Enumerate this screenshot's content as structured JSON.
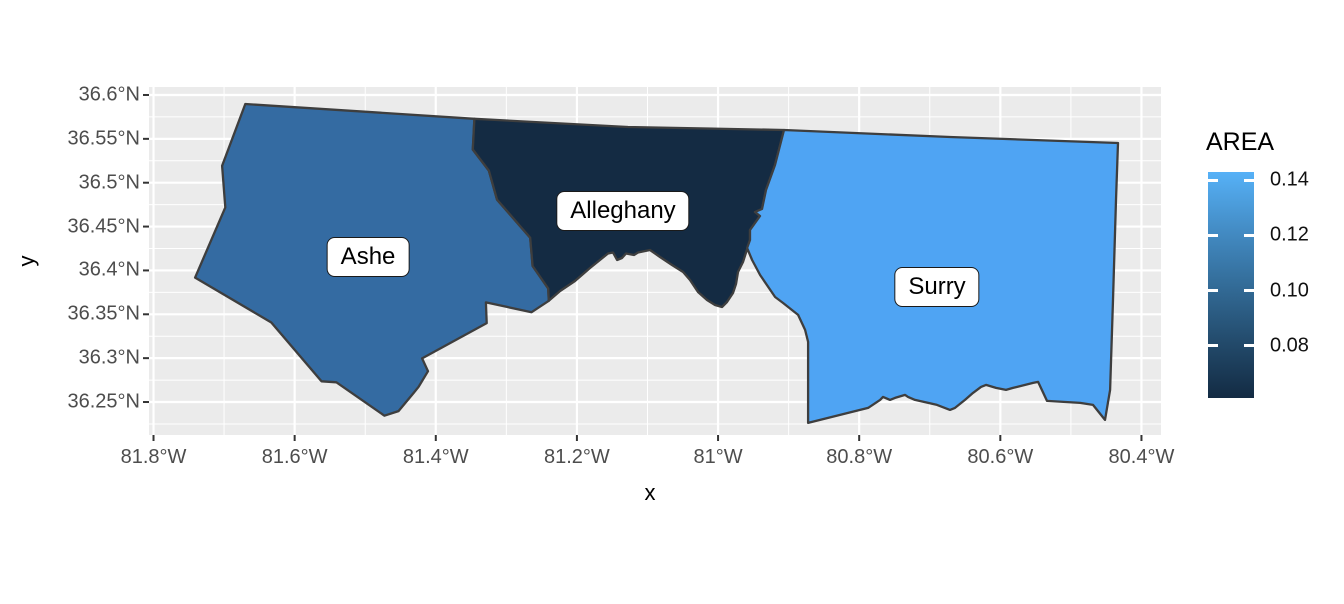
{
  "chart_data": {
    "type": "map",
    "title": "",
    "x_axis": {
      "title": "x",
      "ticks": [
        {
          "v": -81.8,
          "label": "81.8°W"
        },
        {
          "v": -81.6,
          "label": "81.6°W"
        },
        {
          "v": -81.4,
          "label": "81.4°W"
        },
        {
          "v": -81.2,
          "label": "81.2°W"
        },
        {
          "v": -81.0,
          "label": "81°W"
        },
        {
          "v": -80.8,
          "label": "80.8°W"
        },
        {
          "v": -80.6,
          "label": "80.6°W"
        },
        {
          "v": -80.4,
          "label": "80.4°W"
        }
      ],
      "minor": [
        -81.7,
        -81.5,
        -81.3,
        -81.1,
        -80.9,
        -80.7,
        -80.5
      ]
    },
    "y_axis": {
      "title": "y",
      "ticks": [
        {
          "v": 36.6,
          "label": "36.6°N"
        },
        {
          "v": 36.55,
          "label": "36.55°N"
        },
        {
          "v": 36.5,
          "label": "36.5°N"
        },
        {
          "v": 36.45,
          "label": "36.45°N"
        },
        {
          "v": 36.4,
          "label": "36.4°N"
        },
        {
          "v": 36.35,
          "label": "36.35°N"
        },
        {
          "v": 36.3,
          "label": "36.3°N"
        },
        {
          "v": 36.25,
          "label": "36.25°N"
        }
      ],
      "minor": [
        36.225,
        36.275,
        36.325,
        36.375,
        36.425,
        36.475,
        36.525,
        36.575
      ]
    },
    "xlim": [
      -81.8064,
      -80.3723
    ],
    "ylim": [
      36.2124,
      36.6091
    ],
    "grid": "on",
    "panel_bg": "#EBEBEB",
    "grid_color": "#FFFFFF",
    "outline_color": "#3E3E3E",
    "axis_text_color": "#4D4D4D",
    "legend": {
      "title": "AREA",
      "position": "right",
      "range_hi": 0.143,
      "range_lo": 0.061,
      "ticks": [
        {
          "v": 0.14,
          "label": "0.14"
        },
        {
          "v": 0.12,
          "label": "0.12"
        },
        {
          "v": 0.1,
          "label": "0.10"
        },
        {
          "v": 0.08,
          "label": "0.08"
        }
      ],
      "gradient_top_to_bottom": [
        "#56B1F7",
        "#448DC6",
        "#336C98",
        "#234B6C",
        "#132B43"
      ]
    },
    "counties": [
      {
        "name": "Ashe",
        "area": 0.114,
        "fill": "#346BA2",
        "label_pos": [
          -81.496,
          36.415
        ],
        "ring": [
          [
            -81.4728,
            36.2344
          ],
          [
            -81.5408,
            36.2725
          ],
          [
            -81.562,
            36.2736
          ],
          [
            -81.6331,
            36.3407
          ],
          [
            -81.7411,
            36.3918
          ],
          [
            -81.6983,
            36.4718
          ],
          [
            -81.7028,
            36.5193
          ],
          [
            -81.67,
            36.5897
          ],
          [
            -81.3453,
            36.5729
          ],
          [
            -81.3475,
            36.5379
          ],
          [
            -81.3248,
            36.5137
          ],
          [
            -81.3133,
            36.4807
          ],
          [
            -81.2662,
            36.4372
          ],
          [
            -81.2628,
            36.405
          ],
          [
            -81.2407,
            36.3794
          ],
          [
            -81.2399,
            36.3654
          ],
          [
            -81.2642,
            36.3524
          ],
          [
            -81.329,
            36.3635
          ],
          [
            -81.3278,
            36.34
          ],
          [
            -81.4194,
            36.2997
          ],
          [
            -81.4111,
            36.2851
          ],
          [
            -81.4243,
            36.2673
          ],
          [
            -81.431,
            36.2607
          ],
          [
            -81.4529,
            36.2396
          ],
          [
            -81.4728,
            36.2344
          ]
        ]
      },
      {
        "name": "Alleghany",
        "area": 0.061,
        "fill": "#142B43",
        "label_pos": [
          -81.1347,
          36.4678
        ],
        "ring": [
          [
            -81.2399,
            36.3654
          ],
          [
            -81.2407,
            36.3794
          ],
          [
            -81.2628,
            36.405
          ],
          [
            -81.2662,
            36.4372
          ],
          [
            -81.3133,
            36.4807
          ],
          [
            -81.3248,
            36.5137
          ],
          [
            -81.3475,
            36.5379
          ],
          [
            -81.3453,
            36.5729
          ],
          [
            -81.1276,
            36.5635
          ],
          [
            -80.9065,
            36.5601
          ],
          [
            -80.9193,
            36.5202
          ],
          [
            -80.932,
            36.4917
          ],
          [
            -80.9377,
            36.47
          ],
          [
            -80.9476,
            36.4666
          ],
          [
            -80.9405,
            36.462
          ],
          [
            -80.9547,
            36.4461
          ],
          [
            -80.9547,
            36.4347
          ],
          [
            -80.9646,
            36.4096
          ],
          [
            -80.9717,
            36.3982
          ],
          [
            -80.9745,
            36.3845
          ],
          [
            -80.9788,
            36.3743
          ],
          [
            -80.9873,
            36.364
          ],
          [
            -80.9944,
            36.3583
          ],
          [
            -81.0043,
            36.3606
          ],
          [
            -81.0156,
            36.3663
          ],
          [
            -81.0284,
            36.3754
          ],
          [
            -81.0397,
            36.3891
          ],
          [
            -81.0496,
            36.3982
          ],
          [
            -81.0652,
            36.4062
          ],
          [
            -81.0822,
            36.4153
          ],
          [
            -81.0964,
            36.4233
          ],
          [
            -81.1134,
            36.4204
          ],
          [
            -81.1191,
            36.4176
          ],
          [
            -81.1304,
            36.4193
          ],
          [
            -81.1361,
            36.4142
          ],
          [
            -81.1431,
            36.4119
          ],
          [
            -81.1488,
            36.4204
          ],
          [
            -81.1559,
            36.4193
          ],
          [
            -81.1814,
            36.4028
          ],
          [
            -81.2027,
            36.388
          ],
          [
            -81.2239,
            36.3766
          ],
          [
            -81.2399,
            36.3654
          ]
        ]
      },
      {
        "name": "Surry",
        "area": 0.143,
        "fill": "#4FA4F3",
        "label_pos": [
          -80.6897,
          36.3812
        ],
        "ring": [
          [
            -80.9065,
            36.5601
          ],
          [
            -80.6712,
            36.5521
          ],
          [
            -80.4332,
            36.5453
          ],
          [
            -80.436,
            36.4803
          ],
          [
            -80.4403,
            36.3663
          ],
          [
            -80.4445,
            36.2638
          ],
          [
            -80.4516,
            36.2296
          ],
          [
            -80.4686,
            36.2467
          ],
          [
            -80.487,
            36.249
          ],
          [
            -80.5338,
            36.2513
          ],
          [
            -80.5465,
            36.2729
          ],
          [
            -80.5536,
            36.2718
          ],
          [
            -80.582,
            36.2661
          ],
          [
            -80.5919,
            36.2638
          ],
          [
            -80.6061,
            36.2661
          ],
          [
            -80.6203,
            36.2695
          ],
          [
            -80.6274,
            36.2672
          ],
          [
            -80.6387,
            36.2604
          ],
          [
            -80.65,
            36.2524
          ],
          [
            -80.6642,
            36.2433
          ],
          [
            -80.6713,
            36.241
          ],
          [
            -80.6897,
            36.2467
          ],
          [
            -80.7209,
            36.2524
          ],
          [
            -80.7308,
            36.2558
          ],
          [
            -80.735,
            36.2581
          ],
          [
            -80.7492,
            36.2547
          ],
          [
            -80.7563,
            36.2524
          ],
          [
            -80.7662,
            36.2558
          ],
          [
            -80.7704,
            36.2524
          ],
          [
            -80.7874,
            36.2433
          ],
          [
            -80.8724,
            36.2262
          ],
          [
            -80.8724,
            36.3185
          ],
          [
            -80.8767,
            36.3322
          ],
          [
            -80.8866,
            36.3493
          ],
          [
            -80.9078,
            36.3629
          ],
          [
            -80.9191,
            36.3697
          ],
          [
            -80.9404,
            36.3948
          ],
          [
            -80.9517,
            36.4119
          ],
          [
            -80.9588,
            36.4256
          ],
          [
            -80.9547,
            36.4347
          ],
          [
            -80.9547,
            36.4461
          ],
          [
            -80.9405,
            36.462
          ],
          [
            -80.9476,
            36.4666
          ],
          [
            -80.9377,
            36.47
          ],
          [
            -80.932,
            36.4917
          ],
          [
            -80.9193,
            36.5202
          ],
          [
            -80.9065,
            36.5601
          ]
        ]
      }
    ]
  }
}
